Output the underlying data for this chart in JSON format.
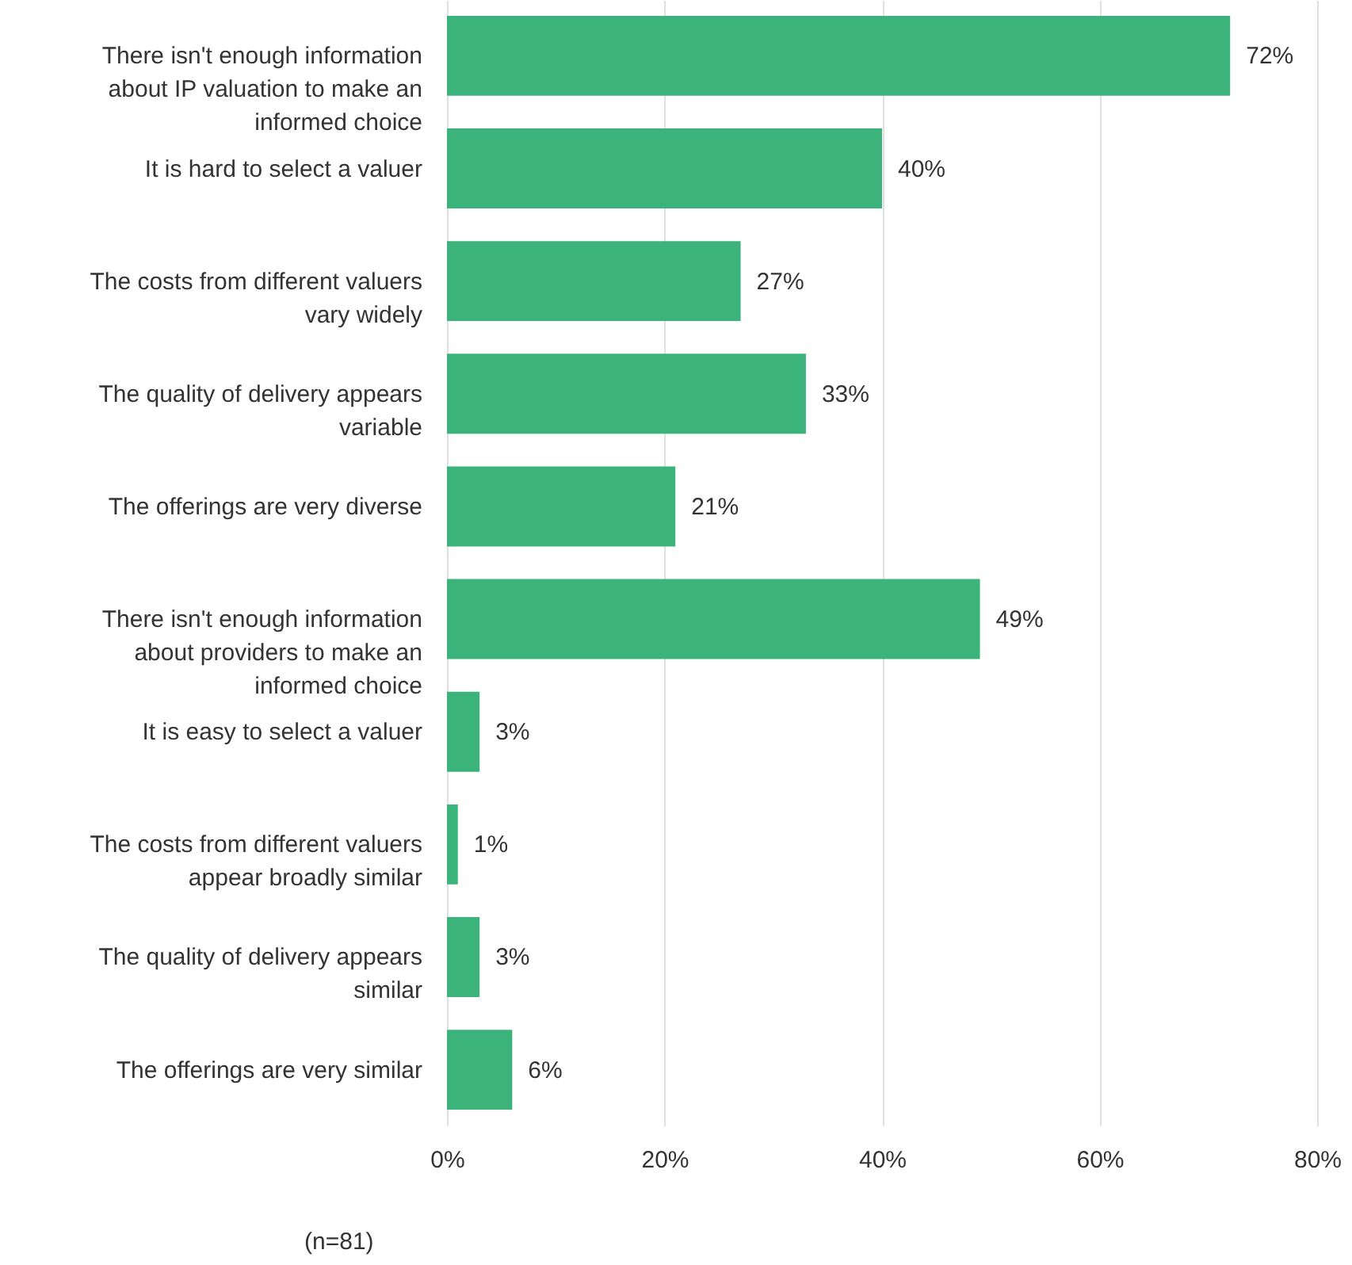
{
  "chart_data": {
    "type": "bar",
    "orientation": "horizontal",
    "categories": [
      "There isn't enough information\nabout IP valuation to make an\ninformed choice",
      "It is hard to select a valuer",
      "The costs from different valuers\nvary widely",
      "The quality of delivery appears\nvariable",
      "The offerings are very diverse",
      "There isn't enough information\nabout providers to make an\ninformed choice",
      "It is easy to select a valuer",
      "The costs from different valuers\nappear broadly similar",
      "The quality of delivery appears\nsimilar",
      "The offerings are very similar"
    ],
    "values": [
      72,
      40,
      27,
      33,
      21,
      49,
      3,
      1,
      3,
      6
    ],
    "value_labels": [
      "72%",
      "40%",
      "27%",
      "33%",
      "21%",
      "49%",
      "3%",
      "1%",
      "3%",
      "6%"
    ],
    "color": "#3cb37a",
    "xlim": [
      0,
      80
    ],
    "xticks": [
      {
        "value": 0,
        "label": "0%"
      },
      {
        "value": 20,
        "label": "20%"
      },
      {
        "value": 40,
        "label": "40%"
      },
      {
        "value": 60,
        "label": "60%"
      },
      {
        "value": 80,
        "label": "80%"
      }
    ],
    "grid": "x",
    "annotations": [
      "(n=81)"
    ]
  }
}
